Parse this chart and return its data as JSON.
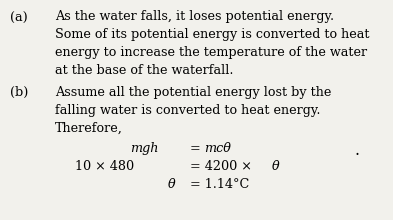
{
  "background_color": "#f2f1ec",
  "label_a": "(a)",
  "label_b": "(b)",
  "text_a_line1": "As the water falls, it loses potential energy.",
  "text_a_line2": "Some of its potential energy is converted to heat",
  "text_a_line3": "energy to increase the temperature of the water",
  "text_a_line4": "at the base of the waterfall.",
  "text_b_line1": "Assume all the potential energy lost by the",
  "text_b_line2": "falling water is converted to heat energy.",
  "text_b_line3": "Therefore,",
  "eq1_lhs": "mgh",
  "eq1_eq": " = ",
  "eq1_rhs": "mcθ",
  "eq2_lhs": "10 × 480",
  "eq2_eq": " = 4200 × ",
  "eq2_rhs": "θ",
  "eq3_lhs": "θ",
  "eq3_eq": " = 1.14°C",
  "dot": ".",
  "font_size": 9.2,
  "label_font_size": 9.2
}
